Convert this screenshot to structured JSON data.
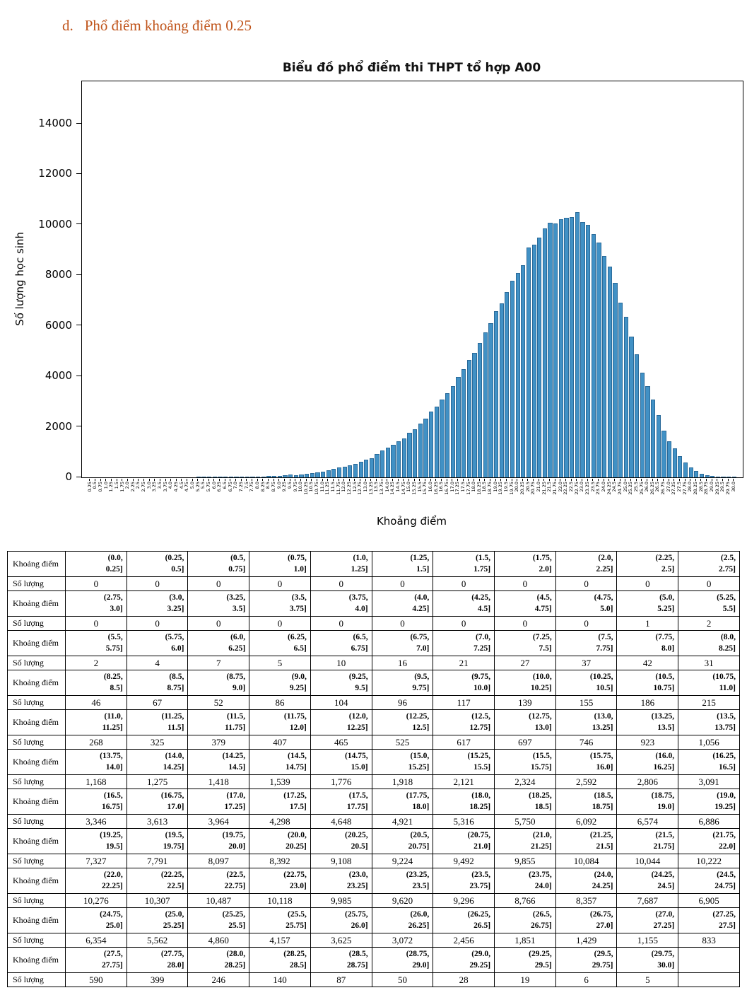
{
  "page": {
    "heading_marker": "d.",
    "heading_text": "Phổ điểm khoảng điểm 0.25",
    "heading_color": "#c0551c"
  },
  "chart_data": {
    "type": "bar",
    "title": "Biểu đồ phổ điểm thi THPT tổ hợp A00",
    "xlabel": "Khoảng điểm",
    "ylabel": "Số lượng học sinh",
    "bar_color": "#4191c5",
    "bar_edge_color": "#2a6a99",
    "ylim": [
      0,
      15680
    ],
    "yticks": [
      0,
      2000,
      4000,
      6000,
      8000,
      10000,
      12000,
      14000
    ],
    "x": [
      0.25,
      0.5,
      0.75,
      1.0,
      1.25,
      1.5,
      1.75,
      2.0,
      2.25,
      2.5,
      2.75,
      3.0,
      3.25,
      3.5,
      3.75,
      4.0,
      4.25,
      4.5,
      4.75,
      5.0,
      5.25,
      5.5,
      5.75,
      6.0,
      6.25,
      6.5,
      6.75,
      7.0,
      7.25,
      7.5,
      7.75,
      8.0,
      8.25,
      8.5,
      8.75,
      9.0,
      9.25,
      9.5,
      9.75,
      10.0,
      10.25,
      10.5,
      10.75,
      11.0,
      11.25,
      11.5,
      11.75,
      12.0,
      12.25,
      12.5,
      12.75,
      13.0,
      13.25,
      13.5,
      13.75,
      14.0,
      14.25,
      14.5,
      14.75,
      15.0,
      15.25,
      15.5,
      15.75,
      16.0,
      16.25,
      16.5,
      16.75,
      17.0,
      17.25,
      17.5,
      17.75,
      18.0,
      18.25,
      18.5,
      18.75,
      19.0,
      19.25,
      19.5,
      19.75,
      20.0,
      20.25,
      20.5,
      20.75,
      21.0,
      21.25,
      21.5,
      21.75,
      22.0,
      22.25,
      22.5,
      22.75,
      23.0,
      23.25,
      23.5,
      23.75,
      24.0,
      24.25,
      24.5,
      24.75,
      25.0,
      25.25,
      25.5,
      25.75,
      26.0,
      26.25,
      26.5,
      26.75,
      27.0,
      27.25,
      27.5,
      27.75,
      28.0,
      28.25,
      28.5,
      28.75,
      29.0,
      29.25,
      29.5,
      29.75,
      30.0
    ],
    "values": [
      0,
      0,
      0,
      0,
      0,
      0,
      0,
      0,
      0,
      0,
      0,
      0,
      0,
      0,
      0,
      0,
      0,
      0,
      0,
      0,
      1,
      2,
      2,
      4,
      7,
      5,
      10,
      16,
      21,
      27,
      37,
      42,
      31,
      46,
      67,
      52,
      86,
      104,
      96,
      117,
      139,
      155,
      186,
      215,
      268,
      325,
      379,
      407,
      465,
      525,
      617,
      697,
      746,
      923,
      1056,
      1168,
      1275,
      1418,
      1539,
      1776,
      1918,
      2121,
      2324,
      2592,
      2806,
      3091,
      3346,
      3613,
      3964,
      4298,
      4648,
      4921,
      5316,
      5750,
      6092,
      6574,
      6886,
      7327,
      7791,
      8097,
      8392,
      9108,
      9224,
      9492,
      9855,
      10084,
      10044,
      10222,
      10276,
      10307,
      10487,
      10118,
      9985,
      9620,
      9296,
      8766,
      8357,
      7687,
      6905,
      6354,
      5562,
      4860,
      4157,
      3625,
      3072,
      2456,
      1851,
      1429,
      1155,
      833,
      590,
      399,
      246,
      140,
      87,
      50,
      28,
      19,
      6,
      5
    ]
  },
  "table": {
    "interval_row_label": "Khoảng điểm",
    "count_row_label": "Số lượng",
    "columns_per_row": 11,
    "groups": [
      {
        "intervals": [
          "(0.0,\n0.25]",
          "(0.25,\n0.5]",
          "(0.5,\n0.75]",
          "(0.75,\n1.0]",
          "(1.0,\n1.25]",
          "(1.25,\n1.5]",
          "(1.5,\n1.75]",
          "(1.75,\n2.0]",
          "(2.0,\n2.25]",
          "(2.25,\n2.5]",
          "(2.5,\n2.75]"
        ],
        "counts": [
          "0",
          "0",
          "0",
          "0",
          "0",
          "0",
          "0",
          "0",
          "0",
          "0",
          "0"
        ]
      },
      {
        "intervals": [
          "(2.75,\n3.0]",
          "(3.0,\n3.25]",
          "(3.25,\n3.5]",
          "(3.5,\n3.75]",
          "(3.75,\n4.0]",
          "(4.0,\n4.25]",
          "(4.25,\n4.5]",
          "(4.5,\n4.75]",
          "(4.75,\n5.0]",
          "(5.0,\n5.25]",
          "(5.25,\n5.5]"
        ],
        "counts": [
          "0",
          "0",
          "0",
          "0",
          "0",
          "0",
          "0",
          "0",
          "0",
          "1",
          "2"
        ]
      },
      {
        "intervals": [
          "(5.5,\n5.75]",
          "(5.75,\n6.0]",
          "(6.0,\n6.25]",
          "(6.25,\n6.5]",
          "(6.5,\n6.75]",
          "(6.75,\n7.0]",
          "(7.0,\n7.25]",
          "(7.25,\n7.5]",
          "(7.5,\n7.75]",
          "(7.75,\n8.0]",
          "(8.0,\n8.25]"
        ],
        "counts": [
          "2",
          "4",
          "7",
          "5",
          "10",
          "16",
          "21",
          "27",
          "37",
          "42",
          "31"
        ]
      },
      {
        "intervals": [
          "(8.25,\n8.5]",
          "(8.5,\n8.75]",
          "(8.75,\n9.0]",
          "(9.0,\n9.25]",
          "(9.25,\n9.5]",
          "(9.5,\n9.75]",
          "(9.75,\n10.0]",
          "(10.0,\n10.25]",
          "(10.25,\n10.5]",
          "(10.5,\n10.75]",
          "(10.75,\n11.0]"
        ],
        "counts": [
          "46",
          "67",
          "52",
          "86",
          "104",
          "96",
          "117",
          "139",
          "155",
          "186",
          "215"
        ]
      },
      {
        "intervals": [
          "(11.0,\n11.25]",
          "(11.25,\n11.5]",
          "(11.5,\n11.75]",
          "(11.75,\n12.0]",
          "(12.0,\n12.25]",
          "(12.25,\n12.5]",
          "(12.5,\n12.75]",
          "(12.75,\n13.0]",
          "(13.0,\n13.25]",
          "(13.25,\n13.5]",
          "(13.5,\n13.75]"
        ],
        "counts": [
          "268",
          "325",
          "379",
          "407",
          "465",
          "525",
          "617",
          "697",
          "746",
          "923",
          "1,056"
        ]
      },
      {
        "intervals": [
          "(13.75,\n14.0]",
          "(14.0,\n14.25]",
          "(14.25,\n14.5]",
          "(14.5,\n14.75]",
          "(14.75,\n15.0]",
          "(15.0,\n15.25]",
          "(15.25,\n15.5]",
          "(15.5,\n15.75]",
          "(15.75,\n16.0]",
          "(16.0,\n16.25]",
          "(16.25,\n16.5]"
        ],
        "counts": [
          "1,168",
          "1,275",
          "1,418",
          "1,539",
          "1,776",
          "1,918",
          "2,121",
          "2,324",
          "2,592",
          "2,806",
          "3,091"
        ]
      },
      {
        "intervals": [
          "(16.5,\n16.75]",
          "(16.75,\n17.0]",
          "(17.0,\n17.25]",
          "(17.25,\n17.5]",
          "(17.5,\n17.75]",
          "(17.75,\n18.0]",
          "(18.0,\n18.25]",
          "(18.25,\n18.5]",
          "(18.5,\n18.75]",
          "(18.75,\n19.0]",
          "(19.0,\n19.25]"
        ],
        "counts": [
          "3,346",
          "3,613",
          "3,964",
          "4,298",
          "4,648",
          "4,921",
          "5,316",
          "5,750",
          "6,092",
          "6,574",
          "6,886"
        ]
      },
      {
        "intervals": [
          "(19.25,\n19.5]",
          "(19.5,\n19.75]",
          "(19.75,\n20.0]",
          "(20.0,\n20.25]",
          "(20.25,\n20.5]",
          "(20.5,\n20.75]",
          "(20.75,\n21.0]",
          "(21.0,\n21.25]",
          "(21.25,\n21.5]",
          "(21.5,\n21.75]",
          "(21.75,\n22.0]"
        ],
        "counts": [
          "7,327",
          "7,791",
          "8,097",
          "8,392",
          "9,108",
          "9,224",
          "9,492",
          "9,855",
          "10,084",
          "10,044",
          "10,222"
        ]
      },
      {
        "intervals": [
          "(22.0,\n22.25]",
          "(22.25,\n22.5]",
          "(22.5,\n22.75]",
          "(22.75,\n23.0]",
          "(23.0,\n23.25]",
          "(23.25,\n23.5]",
          "(23.5,\n23.75]",
          "(23.75,\n24.0]",
          "(24.0,\n24.25]",
          "(24.25,\n24.5]",
          "(24.5,\n24.75]"
        ],
        "counts": [
          "10,276",
          "10,307",
          "10,487",
          "10,118",
          "9,985",
          "9,620",
          "9,296",
          "8,766",
          "8,357",
          "7,687",
          "6,905"
        ]
      },
      {
        "intervals": [
          "(24.75,\n25.0]",
          "(25.0,\n25.25]",
          "(25.25,\n25.5]",
          "(25.5,\n25.75]",
          "(25.75,\n26.0]",
          "(26.0,\n26.25]",
          "(26.25,\n26.5]",
          "(26.5,\n26.75]",
          "(26.75,\n27.0]",
          "(27.0,\n27.25]",
          "(27.25,\n27.5]"
        ],
        "counts": [
          "6,354",
          "5,562",
          "4,860",
          "4,157",
          "3,625",
          "3,072",
          "2,456",
          "1,851",
          "1,429",
          "1,155",
          "833"
        ]
      },
      {
        "intervals": [
          "(27.5,\n27.75]",
          "(27.75,\n28.0]",
          "(28.0,\n28.25]",
          "(28.25,\n28.5]",
          "(28.5,\n28.75]",
          "(28.75,\n29.0]",
          "(29.0,\n29.25]",
          "(29.25,\n29.5]",
          "(29.5,\n29.75]",
          "(29.75,\n30.0]",
          ""
        ],
        "counts": [
          "590",
          "399",
          "246",
          "140",
          "87",
          "50",
          "28",
          "19",
          "6",
          "5",
          ""
        ]
      }
    ]
  }
}
